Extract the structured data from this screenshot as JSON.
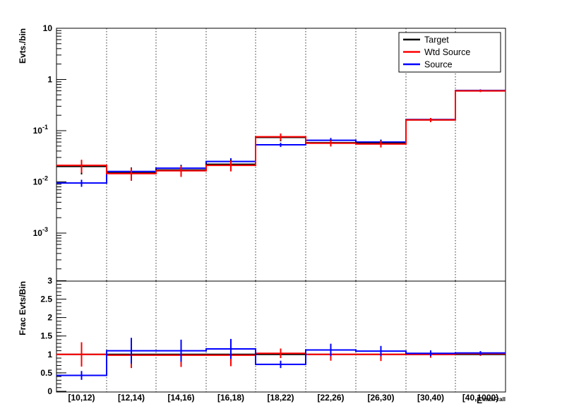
{
  "chart_data": [
    {
      "type": "line",
      "ylabel": "Evts./bin",
      "yscale": "log",
      "ylim": [
        0.0001,
        10
      ],
      "ytick_labels": [
        "10",
        "1",
        "10⁻¹",
        "10⁻²",
        "10⁻³"
      ],
      "ytick_values": [
        10,
        1,
        0.1,
        0.01,
        0.001
      ],
      "categories": [
        "[10,12)",
        "[12,14)",
        "[14,16)",
        "[16,18)",
        "[18,22)",
        "[22,26)",
        "[26,30)",
        "[30,40)",
        "[40,1000)"
      ],
      "legend": {
        "position": "top-right",
        "entries": [
          "Target",
          "Wtd Source",
          "Source"
        ]
      },
      "series": [
        {
          "name": "Target",
          "color": "#000000",
          "values": [
            0.02,
            0.015,
            0.017,
            0.022,
            0.074,
            0.058,
            0.057,
            0.162,
            0.6
          ],
          "errors": [
            0.006,
            0.004,
            0.004,
            0.005,
            0.012,
            0.008,
            0.008,
            0.015,
            0.03
          ]
        },
        {
          "name": "Wtd Source",
          "color": "#ff0000",
          "values": [
            0.021,
            0.0145,
            0.0165,
            0.021,
            0.076,
            0.057,
            0.055,
            0.162,
            0.6
          ],
          "errors": [
            0.006,
            0.004,
            0.004,
            0.005,
            0.012,
            0.008,
            0.008,
            0.015,
            0.03
          ]
        },
        {
          "name": "Source",
          "color": "#0000ff",
          "values": [
            0.0095,
            0.016,
            0.0185,
            0.025,
            0.053,
            0.065,
            0.06,
            0.165,
            0.61
          ],
          "errors": [
            0.0015,
            0.003,
            0.003,
            0.004,
            0.005,
            0.007,
            0.007,
            0.012,
            0.03
          ]
        }
      ]
    },
    {
      "type": "line",
      "ylabel": "Frac Evts/Bin",
      "ylim": [
        0,
        3
      ],
      "ytick_labels": [
        "0",
        "0.5",
        "1",
        "1.5",
        "2",
        "2.5",
        "3"
      ],
      "ytick_values": [
        0,
        0.5,
        1,
        1.5,
        2,
        2.5,
        3
      ],
      "categories": [
        "[10,12)",
        "[12,14)",
        "[14,16)",
        "[16,18)",
        "[18,22)",
        "[22,26)",
        "[26,30)",
        "[30,40)",
        "[40,1000)"
      ],
      "xlabel": "E_maxFrall",
      "series": [
        {
          "name": "Target",
          "color": "#000000",
          "values": [
            1,
            1,
            1,
            1,
            1,
            1,
            1,
            1,
            1
          ]
        },
        {
          "name": "Wtd Source",
          "color": "#ff0000",
          "values": [
            1.0,
            0.98,
            0.98,
            0.98,
            1.03,
            1.0,
            1.0,
            1.0,
            1.02
          ],
          "errors": [
            0.33,
            0.35,
            0.32,
            0.3,
            0.13,
            0.17,
            0.18,
            0.09,
            0.06
          ]
        },
        {
          "name": "Source",
          "color": "#0000ff",
          "values": [
            0.43,
            1.1,
            1.1,
            1.15,
            0.73,
            1.12,
            1.09,
            1.03,
            1.04
          ],
          "errors": [
            0.12,
            0.35,
            0.3,
            0.27,
            0.1,
            0.17,
            0.14,
            0.08,
            0.05
          ]
        }
      ]
    }
  ]
}
